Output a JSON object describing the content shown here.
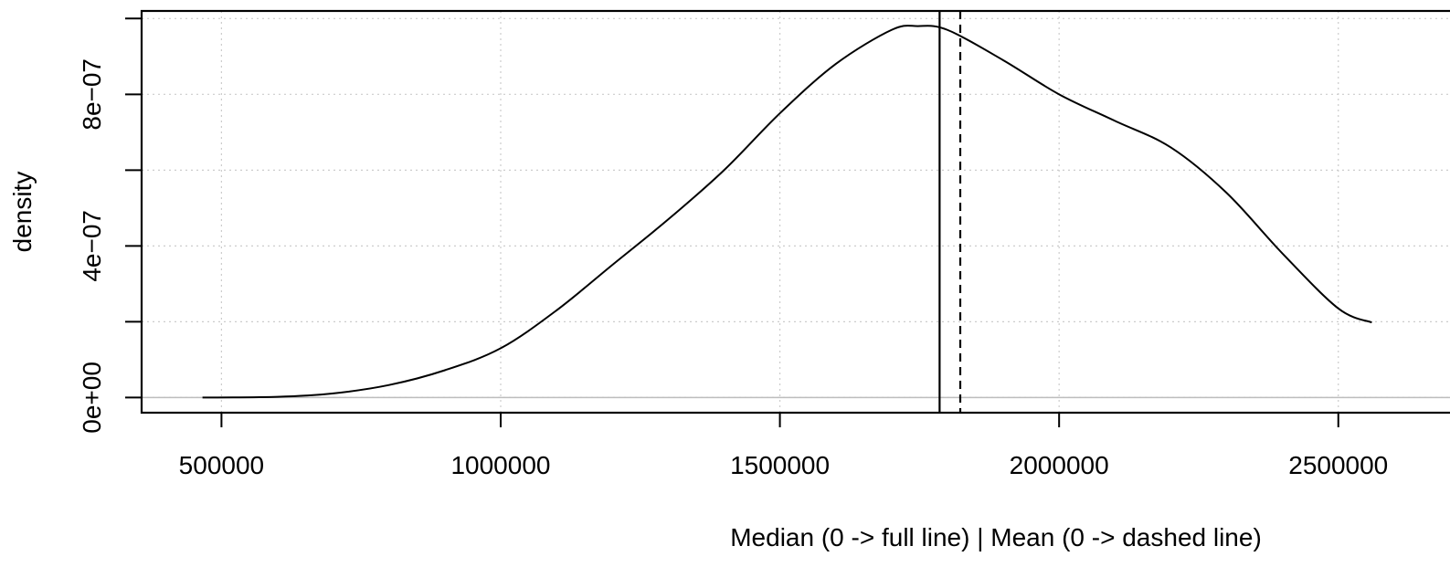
{
  "chart_data": {
    "type": "line",
    "title": "",
    "xlabel": "Median (0 -> full line) | Mean (0 -> dashed line)",
    "ylabel": "density",
    "xlim": [
      357000,
      2700000
    ],
    "ylim": [
      -4e-08,
      1.02e-06
    ],
    "x_ticks": [
      {
        "value": 500000,
        "label": "500000"
      },
      {
        "value": 1000000,
        "label": "1000000"
      },
      {
        "value": 1500000,
        "label": "1500000"
      },
      {
        "value": 2000000,
        "label": "2000000"
      },
      {
        "value": 2500000,
        "label": "2500000"
      }
    ],
    "y_ticks": [
      {
        "value": 0,
        "label": "0e+00"
      },
      {
        "value": 2e-07,
        "label": ""
      },
      {
        "value": 4e-07,
        "label": "4e−07"
      },
      {
        "value": 6e-07,
        "label": ""
      },
      {
        "value": 8e-07,
        "label": "8e−07"
      },
      {
        "value": 1e-06,
        "label": ""
      }
    ],
    "grid": true,
    "baseline": 0,
    "median": 1786000,
    "mean": 1823000,
    "series": [
      {
        "x": [
          466000,
          600000,
          700000,
          800000,
          900000,
          1000000,
          1100000,
          1200000,
          1300000,
          1400000,
          1500000,
          1600000,
          1700000,
          1747000,
          1800000,
          1900000,
          2000000,
          2100000,
          2200000,
          2300000,
          2400000,
          2500000,
          2560000
        ],
        "y": [
          0.0,
          2e-09,
          1.1e-08,
          3.3e-08,
          7.2e-08,
          1.3e-07,
          2.3e-07,
          3.5e-07,
          4.7e-07,
          6e-07,
          7.5e-07,
          8.8e-07,
          9.7e-07,
          9.8e-07,
          9.7e-07,
          8.9e-07,
          8e-07,
          7.3e-07,
          6.6e-07,
          5.4e-07,
          3.8e-07,
          2.35e-07,
          1.98e-07
        ]
      }
    ]
  }
}
